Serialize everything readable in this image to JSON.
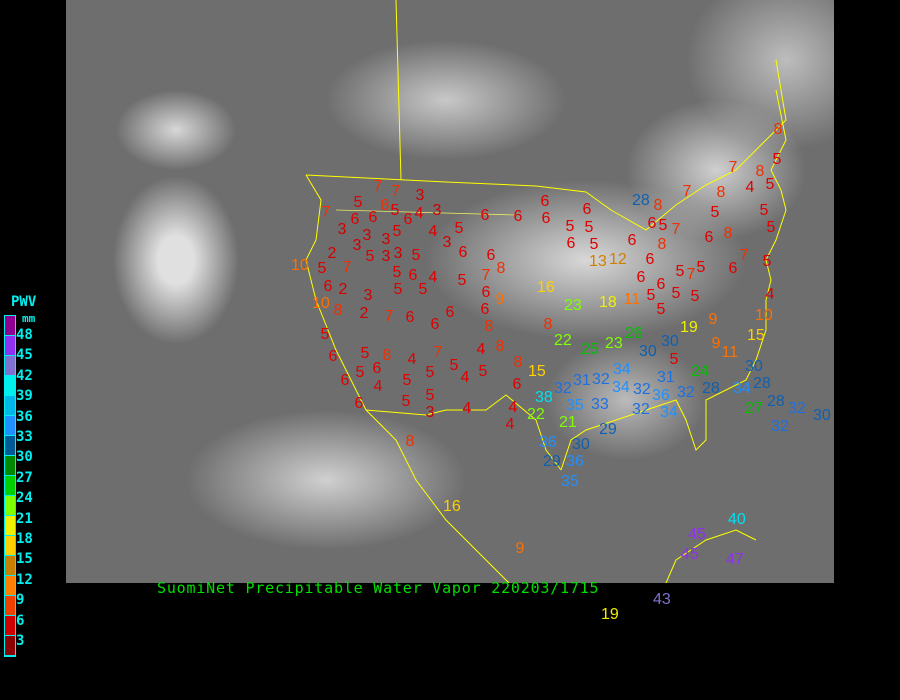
{
  "title": "SuomiNet Precipitable Water Vapor 220203/1715",
  "legend": {
    "title": "PWV",
    "unit": "mm",
    "ticks": [
      "48",
      "45",
      "42",
      "39",
      "36",
      "33",
      "30",
      "27",
      "24",
      "21",
      "18",
      "15",
      "12",
      "9",
      "6",
      "3"
    ],
    "colors": [
      "#900090",
      "#9030f0",
      "#8070d0",
      "#00f0f0",
      "#00b8e8",
      "#1e90ff",
      "#005a96",
      "#008800",
      "#00d000",
      "#80ff00",
      "#f0f000",
      "#ffd000",
      "#c88000",
      "#ff8000",
      "#f04000",
      "#d00000",
      "#8b0000"
    ]
  },
  "stations": {
    "values": [
      7,
      7,
      3,
      5,
      8,
      5,
      4,
      3,
      7,
      6,
      3,
      6,
      6,
      5,
      4,
      5,
      6,
      6,
      6,
      6,
      6,
      5,
      5,
      3,
      3,
      3,
      3,
      2,
      5,
      3,
      5,
      3,
      6,
      6,
      6,
      5,
      6,
      10,
      5,
      7,
      5,
      6,
      4,
      5,
      7,
      8,
      13,
      12,
      6,
      6,
      2,
      3,
      5,
      5,
      6,
      6,
      9,
      16,
      10,
      8,
      2,
      7,
      6,
      6,
      6,
      8,
      5,
      5,
      8,
      4,
      7,
      5,
      4,
      8,
      8,
      6,
      5,
      6,
      6,
      4,
      5,
      5,
      4,
      5,
      6,
      15,
      6,
      5,
      5,
      3,
      4,
      4,
      4,
      8,
      16,
      9,
      19,
      43,
      45,
      45,
      40,
      47,
      23,
      18,
      11,
      6,
      6,
      5,
      5,
      5,
      5,
      8,
      22,
      25,
      23,
      26,
      30,
      30,
      19,
      9,
      9,
      11,
      15,
      10,
      5,
      24,
      28,
      31,
      34,
      32,
      31,
      32,
      34,
      32,
      36,
      32,
      35,
      33,
      32,
      34,
      38,
      22,
      21,
      29,
      36,
      29,
      30,
      36,
      35,
      34,
      28,
      28,
      27,
      32,
      32,
      30,
      30,
      28,
      8,
      7,
      8,
      7,
      8,
      5,
      5,
      8,
      4,
      5,
      5,
      8,
      6,
      7,
      8,
      6,
      5,
      5,
      5,
      7,
      6,
      5,
      4,
      5,
      7,
      5
    ]
  }
}
